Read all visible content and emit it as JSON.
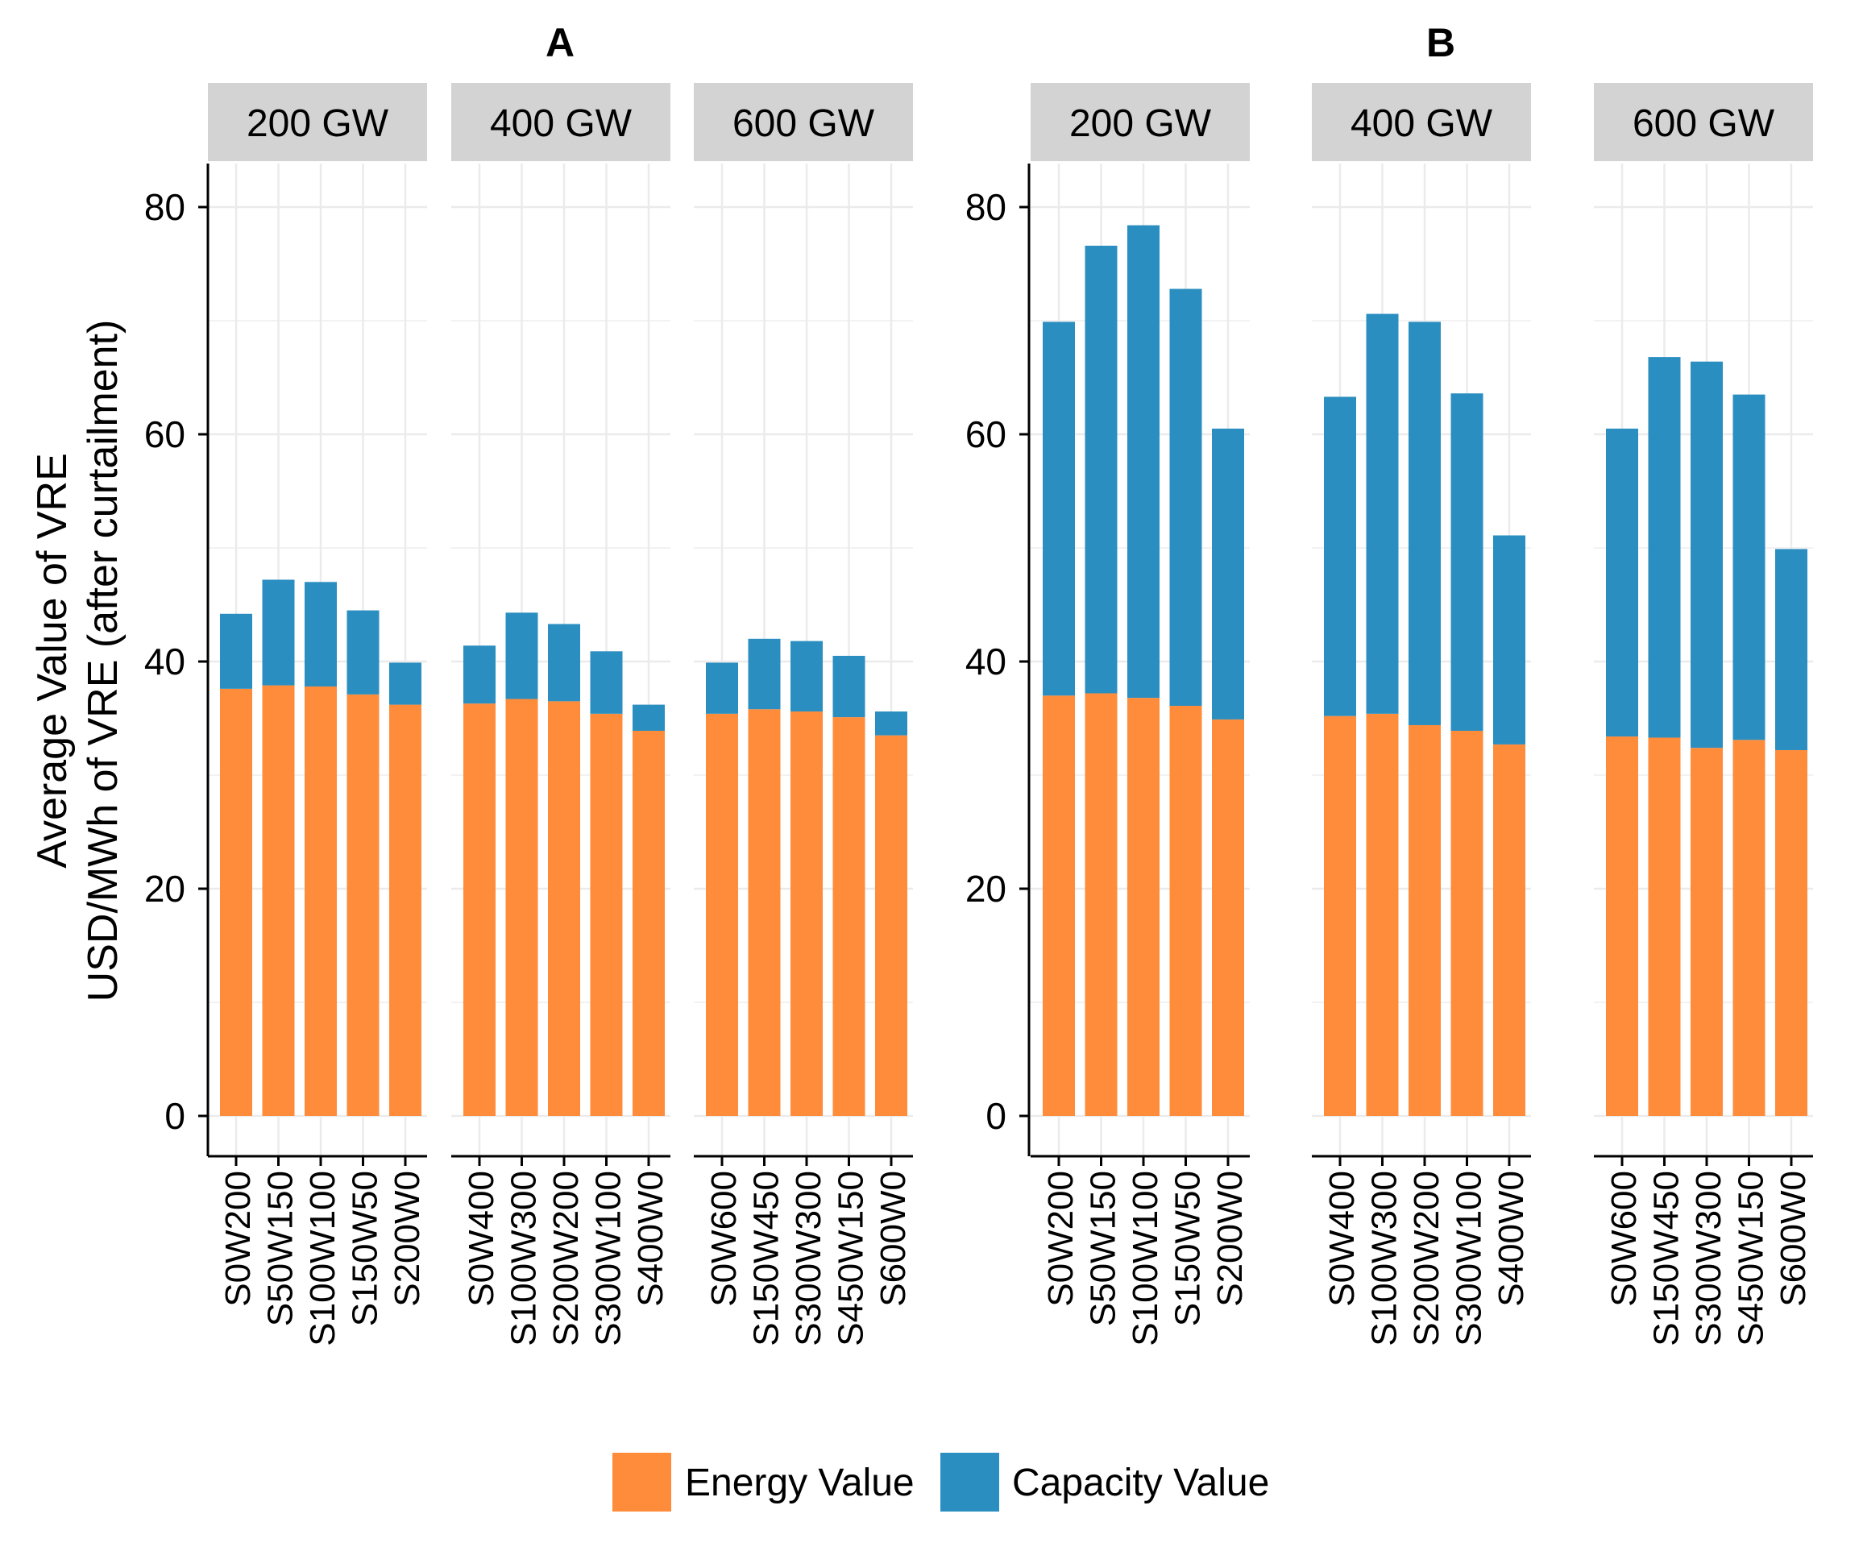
{
  "y_axis_label_line1": "Average Value of VRE",
  "y_axis_label_line2": "USD/MWh of VRE (after curtailment)",
  "colors": {
    "energy": "#FF8C3A",
    "capacity": "#2B8EC0",
    "strip": "#D3D3D3",
    "grid": "#EBEBEB"
  },
  "legend": {
    "energy_label": "Energy Value",
    "capacity_label": "Capacity Value"
  },
  "chart_data": {
    "type": "bar",
    "stacked": true,
    "ylim": [
      0,
      84
    ],
    "yticks": [
      0,
      20,
      40,
      60,
      80
    ],
    "grid": true,
    "legend_position": "bottom",
    "panels": [
      {
        "title": "A",
        "facets": [
          {
            "label": "200 GW",
            "categories": [
              "S0W200",
              "S50W150",
              "S100W100",
              "S150W50",
              "S200W0"
            ],
            "series": [
              {
                "name": "Energy Value",
                "values": [
                  37.6,
                  37.9,
                  37.8,
                  37.1,
                  36.2
                ]
              },
              {
                "name": "Capacity Value",
                "values": [
                  6.6,
                  9.3,
                  9.2,
                  7.4,
                  3.7
                ]
              }
            ]
          },
          {
            "label": "400 GW",
            "categories": [
              "S0W400",
              "S100W300",
              "S200W200",
              "S300W100",
              "S400W0"
            ],
            "series": [
              {
                "name": "Energy Value",
                "values": [
                  36.3,
                  36.7,
                  36.5,
                  35.4,
                  33.9
                ]
              },
              {
                "name": "Capacity Value",
                "values": [
                  5.1,
                  7.6,
                  6.8,
                  5.5,
                  2.3
                ]
              }
            ]
          },
          {
            "label": "600 GW",
            "categories": [
              "S0W600",
              "S150W450",
              "S300W300",
              "S450W150",
              "S600W0"
            ],
            "series": [
              {
                "name": "Energy Value",
                "values": [
                  35.4,
                  35.8,
                  35.6,
                  35.1,
                  33.5
                ]
              },
              {
                "name": "Capacity Value",
                "values": [
                  4.5,
                  6.2,
                  6.2,
                  5.4,
                  2.1
                ]
              }
            ]
          }
        ]
      },
      {
        "title": "B",
        "facets": [
          {
            "label": "200 GW",
            "categories": [
              "S0W200",
              "S50W150",
              "S100W100",
              "S150W50",
              "S200W0"
            ],
            "series": [
              {
                "name": "Energy Value",
                "values": [
                  37.0,
                  37.2,
                  36.8,
                  36.1,
                  34.9
                ]
              },
              {
                "name": "Capacity Value",
                "values": [
                  32.9,
                  39.4,
                  41.6,
                  36.7,
                  25.6
                ]
              }
            ]
          },
          {
            "label": "400 GW",
            "categories": [
              "S0W400",
              "S100W300",
              "S200W200",
              "S300W100",
              "S400W0"
            ],
            "series": [
              {
                "name": "Energy Value",
                "values": [
                  35.2,
                  35.4,
                  34.4,
                  33.9,
                  32.7
                ]
              },
              {
                "name": "Capacity Value",
                "values": [
                  28.1,
                  35.2,
                  35.5,
                  29.7,
                  18.4
                ]
              }
            ]
          },
          {
            "label": "600 GW",
            "categories": [
              "S0W600",
              "S150W450",
              "S300W300",
              "S450W150",
              "S600W0"
            ],
            "series": [
              {
                "name": "Energy Value",
                "values": [
                  33.4,
                  33.3,
                  32.4,
                  33.1,
                  32.2
                ]
              },
              {
                "name": "Capacity Value",
                "values": [
                  27.1,
                  33.5,
                  34.0,
                  30.4,
                  17.7
                ]
              }
            ]
          }
        ]
      }
    ]
  }
}
